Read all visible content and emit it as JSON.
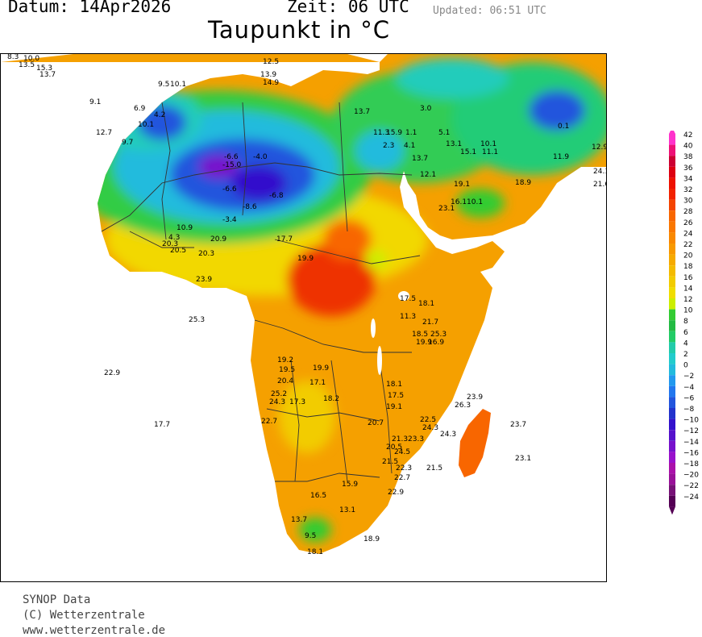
{
  "header": {
    "date": "Datum:  14Apr2026",
    "time": "Zeit: 06  UTC",
    "updated": "Updated: 06:51 UTC",
    "title": "Taupunkt in °C"
  },
  "legend": {
    "values": [
      42,
      40,
      38,
      36,
      34,
      32,
      30,
      28,
      26,
      24,
      22,
      20,
      18,
      16,
      14,
      12,
      10,
      8,
      6,
      4,
      2,
      0,
      -2,
      -4,
      -6,
      -8,
      -10,
      -12,
      -14,
      -16,
      -18,
      -20,
      -22,
      -24
    ],
    "colors": [
      "#ff33cc",
      "#ee1177",
      "#cc0033",
      "#dd0011",
      "#ee1100",
      "#f22200",
      "#f44400",
      "#f86600",
      "#fa7700",
      "#f98800",
      "#f89900",
      "#f6aa00",
      "#f4bb00",
      "#f2cc00",
      "#f0dd00",
      "#ccee00",
      "#33cc33",
      "#22bb44",
      "#22cc66",
      "#22ccaa",
      "#22cccc",
      "#22bbdd",
      "#2299ee",
      "#2277ee",
      "#2255dd",
      "#2233cc",
      "#3311cc",
      "#5511cc",
      "#7711cc",
      "#9911cc",
      "#aa11aa",
      "#991199",
      "#771177",
      "#550055"
    ]
  },
  "observations": [
    {
      "label": "8.3"
    },
    {
      "label": "10.0"
    },
    {
      "label": "13.5"
    },
    {
      "label": "15.3"
    },
    {
      "label": "13.7"
    },
    {
      "label": "9.1"
    },
    {
      "label": "6.9"
    },
    {
      "label": "4.2"
    },
    {
      "label": "10.1"
    },
    {
      "label": "12.7"
    },
    {
      "label": "9.7"
    },
    {
      "label": "9.5"
    },
    {
      "label": "10.1"
    },
    {
      "label": "12.5"
    },
    {
      "label": "13.9"
    },
    {
      "label": "14.9"
    },
    {
      "label": "13.7"
    },
    {
      "label": "11.3"
    },
    {
      "label": "15.9"
    },
    {
      "label": "2.3"
    },
    {
      "label": "4.1"
    },
    {
      "label": "1.1"
    },
    {
      "label": "3.0"
    },
    {
      "label": "5.1"
    },
    {
      "label": "10.1"
    },
    {
      "label": "13.1"
    },
    {
      "label": "15.1"
    },
    {
      "label": "11.1"
    },
    {
      "label": "13.7"
    },
    {
      "label": "12.1"
    },
    {
      "label": "19.1"
    },
    {
      "label": "23.1"
    },
    {
      "label": "16.1"
    },
    {
      "label": "10.1"
    },
    {
      "label": "-6.6"
    },
    {
      "label": "-15.0"
    },
    {
      "label": "-4.0"
    },
    {
      "label": "-6.6"
    },
    {
      "label": "-6.8"
    },
    {
      "label": "-8.6"
    },
    {
      "label": "-3.4"
    },
    {
      "label": "10.9"
    },
    {
      "label": "4.3"
    },
    {
      "label": "20.3"
    },
    {
      "label": "20.5"
    },
    {
      "label": "20.3"
    },
    {
      "label": "20.9"
    },
    {
      "label": "23.9"
    },
    {
      "label": "17.7"
    },
    {
      "label": "19.9"
    },
    {
      "label": "25.3"
    },
    {
      "label": "22.9"
    },
    {
      "label": "17.7"
    },
    {
      "label": "19.2"
    },
    {
      "label": "19.5"
    },
    {
      "label": "20.4"
    },
    {
      "label": "19.9"
    },
    {
      "label": "17.1"
    },
    {
      "label": "25.2"
    },
    {
      "label": "24.3"
    },
    {
      "label": "17.3"
    },
    {
      "label": "18.2"
    },
    {
      "label": "22.7"
    },
    {
      "label": "17.5"
    },
    {
      "label": "18.1"
    },
    {
      "label": "11.3"
    },
    {
      "label": "21.7"
    },
    {
      "label": "18.5"
    },
    {
      "label": "25.3"
    },
    {
      "label": "19.9"
    },
    {
      "label": "16.9"
    },
    {
      "label": "18.1"
    },
    {
      "label": "17.5"
    },
    {
      "label": "19.1"
    },
    {
      "label": "20.7"
    },
    {
      "label": "22.5"
    },
    {
      "label": "24.3"
    },
    {
      "label": "21.3"
    },
    {
      "label": "23.3"
    },
    {
      "label": "20.5"
    },
    {
      "label": "24.5"
    },
    {
      "label": "21.5"
    },
    {
      "label": "22.3"
    },
    {
      "label": "22.7"
    },
    {
      "label": "23.9"
    },
    {
      "label": "26.3"
    },
    {
      "label": "24.3"
    },
    {
      "label": "23.7"
    },
    {
      "label": "23.1"
    },
    {
      "label": "21.5"
    },
    {
      "label": "16.5"
    },
    {
      "label": "15.9"
    },
    {
      "label": "22.9"
    },
    {
      "label": "13.1"
    },
    {
      "label": "13.7"
    },
    {
      "label": "9.5"
    },
    {
      "label": "18.1"
    },
    {
      "label": "18.9"
    },
    {
      "label": "11.9"
    },
    {
      "label": "18.9"
    },
    {
      "label": "21.6"
    },
    {
      "label": "24.1"
    },
    {
      "label": "0.1"
    },
    {
      "label": "12.9"
    }
  ],
  "footer": {
    "line1": "SYNOP Data",
    "line2": "(C) Wetterzentrale",
    "line3": "www.wetterzentrale.de"
  }
}
